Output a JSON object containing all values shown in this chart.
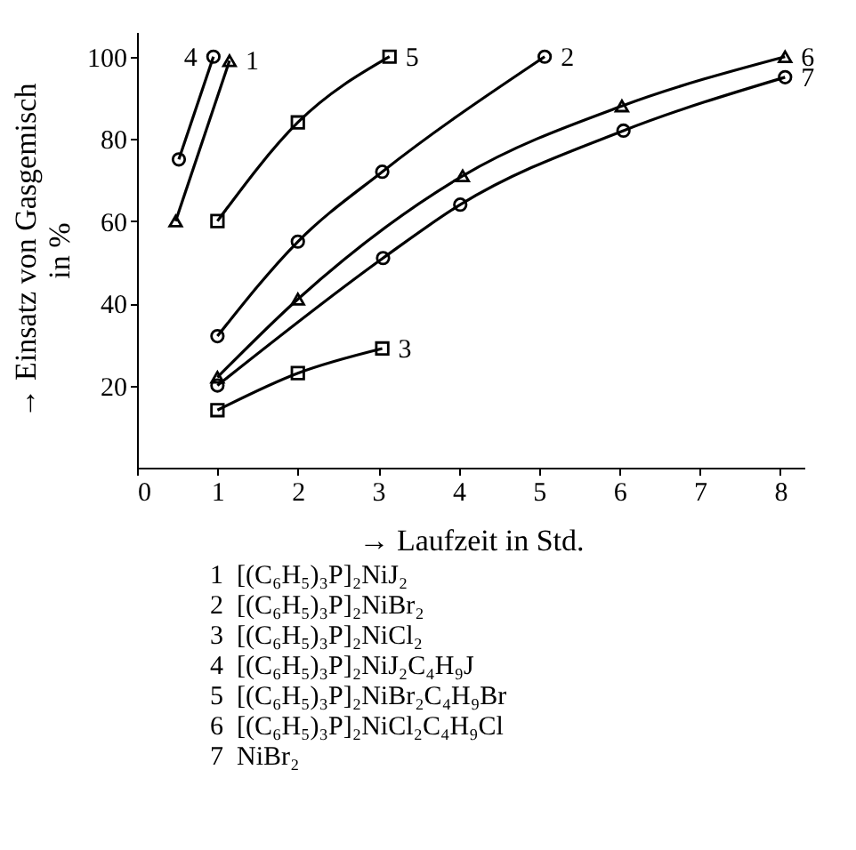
{
  "chart_data": {
    "type": "line",
    "xlabel": "→ Laufzeit in Std.",
    "ylabel": "→ Einsatz von Gasgemisch\nin %",
    "xlim": [
      0,
      8.3
    ],
    "ylim": [
      0,
      106
    ],
    "xticks": [
      0,
      1,
      2,
      3,
      4,
      5,
      6,
      7,
      8
    ],
    "yticks": [
      20,
      40,
      60,
      80,
      100
    ],
    "grid": false,
    "series": [
      {
        "name": "1",
        "color": "#000000",
        "marker": "triangle",
        "x": [
          0.48,
          1.15
        ],
        "values": [
          60,
          99
        ]
      },
      {
        "name": "2",
        "color": "#000000",
        "marker": "circle",
        "x": [
          1,
          2,
          3.05,
          5.07
        ],
        "values": [
          32,
          55,
          72,
          100
        ]
      },
      {
        "name": "3",
        "color": "#000000",
        "marker": "square",
        "x": [
          1,
          2,
          3.05
        ],
        "values": [
          14,
          23,
          29
        ]
      },
      {
        "name": "4",
        "color": "#000000",
        "marker": "circle",
        "x": [
          0.52,
          0.95
        ],
        "values": [
          75,
          100
        ]
      },
      {
        "name": "5",
        "color": "#000000",
        "marker": "square",
        "x": [
          1,
          2,
          3.14
        ],
        "values": [
          60,
          84,
          100
        ]
      },
      {
        "name": "6",
        "color": "#000000",
        "marker": "triangle",
        "x": [
          1,
          2,
          4.05,
          6.03,
          8.06
        ],
        "values": [
          22,
          41,
          71,
          88,
          100
        ]
      },
      {
        "name": "7",
        "color": "#000000",
        "marker": "circle",
        "x": [
          1,
          3.06,
          4.02,
          6.05,
          8.06
        ],
        "values": [
          20,
          51,
          64,
          82,
          95
        ]
      }
    ],
    "annotations": [
      "1  [(C₆H₅)₃P]₂NiJ₂",
      "2  [(C₆H₅)₃P]₂NiBr₂",
      "3  [(C₆H₅)₃P]₂NiCl₂",
      "4  [(C₆H₅)₃P]₂NiJ₂C₄H₉J",
      "5  [(C₆H₅)₃P]₂NiBr₂C₄H₉Br",
      "6  [(C₆H₅)₃P]₂NiCl₂C₄H₉Cl",
      "7  NiBr₂"
    ]
  }
}
